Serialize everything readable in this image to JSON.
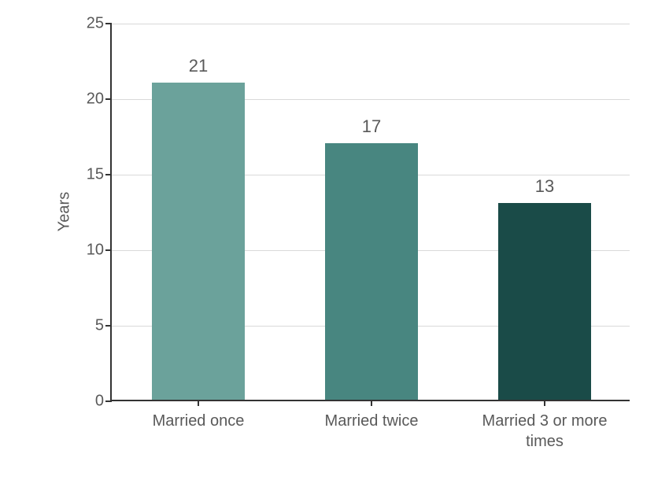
{
  "chart": {
    "type": "bar",
    "ylabel": "Years",
    "label_fontsize": 20,
    "label_color": "#595959",
    "background_color": "#ffffff",
    "axis_color": "#333333",
    "grid_color": "#d9d9d9",
    "ylim": [
      0,
      25
    ],
    "ytick_step": 5,
    "yticks": [
      "0",
      "5",
      "10",
      "15",
      "20",
      "25"
    ],
    "bar_width_ratio": 0.54,
    "value_fontsize": 22,
    "tick_fontsize": 20,
    "categories": [
      "Married once",
      "Married twice",
      "Married 3 or more times"
    ],
    "category_wrap": [
      "Married once",
      "Married twice",
      "Married 3 or more\ntimes"
    ],
    "values": [
      21,
      17,
      13
    ],
    "bar_colors": [
      "#6ba29b",
      "#488680",
      "#1a4b48"
    ]
  }
}
